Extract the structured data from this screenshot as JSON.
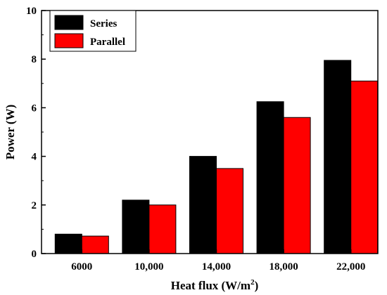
{
  "chart_data": {
    "type": "bar",
    "categories": [
      "6000",
      "10,000",
      "14,000",
      "18,000",
      "22,000"
    ],
    "series": [
      {
        "name": "Series",
        "values": [
          0.8,
          2.2,
          4.0,
          6.25,
          7.95
        ],
        "color": "#000000"
      },
      {
        "name": "Parallel",
        "values": [
          0.72,
          2.0,
          3.5,
          5.6,
          7.1
        ],
        "color": "#ff0000"
      }
    ],
    "xlabel": "Heat flux (W/m",
    "xlabel_sup": "2",
    "xlabel_suffix": ")",
    "ylabel": "Power (W)",
    "ylim": [
      0,
      10
    ],
    "yticks": [
      "0",
      "2",
      "4",
      "6",
      "8",
      "10"
    ],
    "grid": false,
    "legend_position": "top-left"
  }
}
